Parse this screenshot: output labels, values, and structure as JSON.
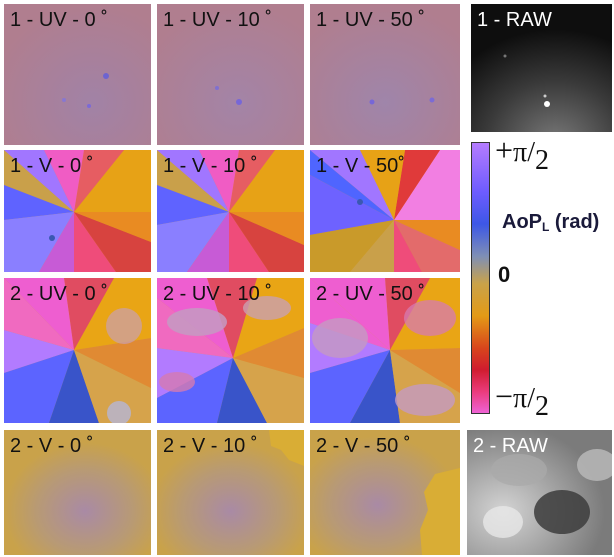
{
  "tiles": [
    {
      "label": "1 - UV - 0 ˚"
    },
    {
      "label": "1 - UV - 10 ˚"
    },
    {
      "label": "1 - UV - 50 ˚"
    },
    {
      "label": "1 - RAW"
    },
    {
      "label": "1 - V - 0 ˚"
    },
    {
      "label": "1 - V - 10 ˚"
    },
    {
      "label": "1 - V - 50˚"
    },
    {
      "label": "2 - UV - 0 ˚"
    },
    {
      "label": "2 - UV - 10 ˚"
    },
    {
      "label": "2 - UV - 50 ˚"
    },
    {
      "label": "2 - V - 0 ˚"
    },
    {
      "label": "2 - V - 10 ˚"
    },
    {
      "label": "2 - V - 50 ˚"
    },
    {
      "label": "2 - RAW"
    }
  ],
  "colorbar": {
    "top_sign": "+",
    "top_pi": "π",
    "top_den": "2",
    "bottom_sign": "−",
    "bottom_pi": "π",
    "bottom_den": "2",
    "zero": "0",
    "units_main": "AoP",
    "units_sub": "L",
    "units_tail": " (rad)"
  },
  "colors": {
    "uv1_base": "#a87e9b",
    "v2_base": "#c9a24a",
    "raw_dark": "#111111",
    "raw_light": "#c9c9c9"
  }
}
